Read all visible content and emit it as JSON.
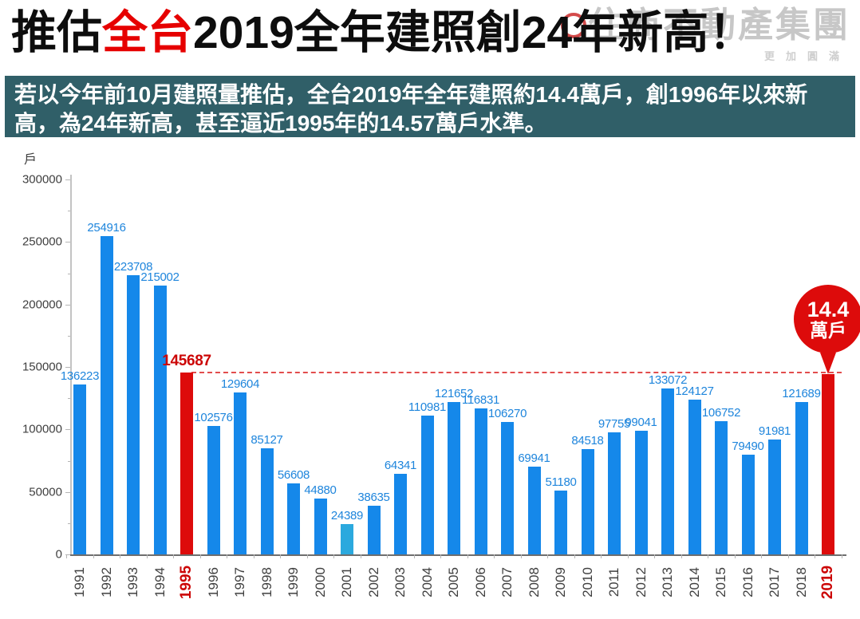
{
  "header": {
    "title_parts": [
      {
        "text": "推估"
      },
      {
        "text": "全台"
      },
      {
        "text": "2019全年建照創24年新高！"
      }
    ],
    "title_accent_color": "#e60000",
    "logo": {
      "text": "住商不動產集團",
      "tagline": "更加圓滿"
    },
    "subtitle": "若以今年前10月建照量推估，全台2019年全年建照約14.4萬戶，創1996年以來新高，為24年新高，甚至逼近1995年的14.57萬戶水準。",
    "subtitle_bg": "#305f68"
  },
  "chart_data": {
    "type": "bar",
    "title": "",
    "ylabel": "戶",
    "xlabel": "",
    "ylim": [
      0,
      300000
    ],
    "ytick_step": 50000,
    "categories": [
      "1991",
      "1992",
      "1993",
      "1994",
      "1995",
      "1996",
      "1997",
      "1998",
      "1999",
      "2000",
      "2001",
      "2002",
      "2003",
      "2004",
      "2005",
      "2006",
      "2007",
      "2008",
      "2009",
      "2010",
      "2011",
      "2012",
      "2013",
      "2014",
      "2015",
      "2016",
      "2017",
      "2018",
      "2019"
    ],
    "values": [
      136223,
      254916,
      223708,
      215002,
      145687,
      102576,
      129604,
      85127,
      56608,
      44880,
      24389,
      38635,
      64341,
      110981,
      121652,
      116831,
      106270,
      69941,
      51180,
      84518,
      97755,
      99041,
      133072,
      124127,
      106752,
      79490,
      91981,
      121689,
      144000
    ],
    "highlight_categories": [
      "1995",
      "2019"
    ],
    "light_category": "2001",
    "value_label_hidden_for": [
      "2019"
    ],
    "reference_line": {
      "value": 145687,
      "label": "145687"
    },
    "badge": {
      "line1": "14.4",
      "line2": "萬戶",
      "attached_to": "2019"
    },
    "grid": false,
    "legend": false,
    "colors": {
      "bar": "#1588ea",
      "bar_light": "#2ba9de",
      "highlight": "#dd0b0b",
      "value_label": "#1e85dc",
      "highlight_label": "#cc0505",
      "reference_dash": "#e24d4d",
      "axis_line": "#6e6e6e",
      "tick_text": "#3f3f3f"
    }
  }
}
